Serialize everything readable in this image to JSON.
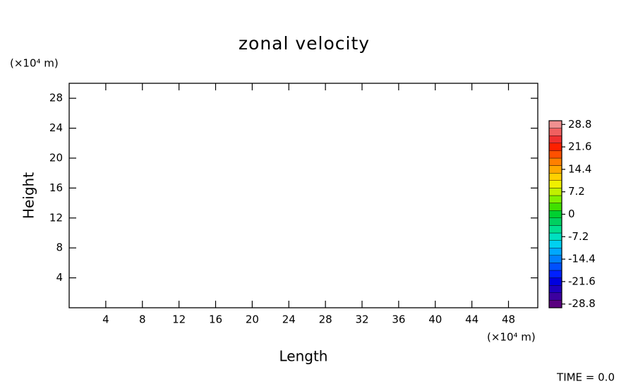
{
  "chart_data": {
    "type": "contour",
    "title": "zonal velocity",
    "xlabel": "Length",
    "ylabel": "Height",
    "x_unit": "(×10⁴ m)",
    "y_unit": "(×10⁴ m)",
    "time_label": "TIME = 0.0",
    "xlim": [
      0,
      51.2
    ],
    "xticks": [
      4,
      8,
      12,
      16,
      20,
      24,
      28,
      32,
      36,
      40,
      44,
      48
    ],
    "ylim": [
      0,
      30
    ],
    "yticks": [
      4,
      8,
      12,
      16,
      20,
      24,
      28
    ],
    "colorbar": {
      "lim": [
        -30,
        30
      ],
      "ticks": [
        28.8,
        21.6,
        14.4,
        7.2,
        0,
        -7.2,
        -14.4,
        -21.6,
        -28.8
      ],
      "colors": [
        "#5a007f",
        "#3c009f",
        "#1e00bf",
        "#0000df",
        "#0020ff",
        "#0050ff",
        "#0080ff",
        "#00a8ff",
        "#00d0f0",
        "#00e0c0",
        "#00e090",
        "#00d060",
        "#00d030",
        "#40e000",
        "#80f000",
        "#c0f000",
        "#f0f000",
        "#ffd000",
        "#ffa800",
        "#ff8000",
        "#ff5000",
        "#ff2000",
        "#f03030",
        "#f06060",
        "#f09090"
      ]
    }
  }
}
